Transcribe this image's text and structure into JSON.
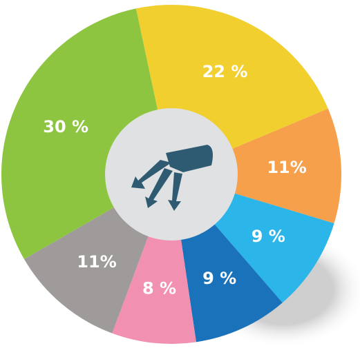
{
  "chart_data": {
    "type": "pie",
    "values": [
      22,
      11,
      9,
      9,
      8,
      11,
      30
    ],
    "value_labels": [
      "22 %",
      "11%",
      "9 %",
      "9 %",
      "8 %",
      "11%",
      "30 %"
    ],
    "colors": [
      "#f0cf2e",
      "#f7a04b",
      "#2cb5e8",
      "#1a73ba",
      "#f190b0",
      "#9e9b9a",
      "#8dc540"
    ]
  }
}
